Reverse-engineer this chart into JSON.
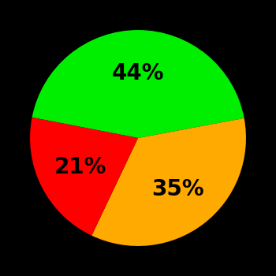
{
  "slices": [
    44,
    35,
    21
  ],
  "colors": [
    "#00ee00",
    "#ffaa00",
    "#ff0000"
  ],
  "labels": [
    "44%",
    "35%",
    "21%"
  ],
  "background_color": "#000000",
  "label_fontsize": 20,
  "label_fontweight": "bold",
  "startangle": 169,
  "counterclock": false,
  "labeldistance": 0.6
}
